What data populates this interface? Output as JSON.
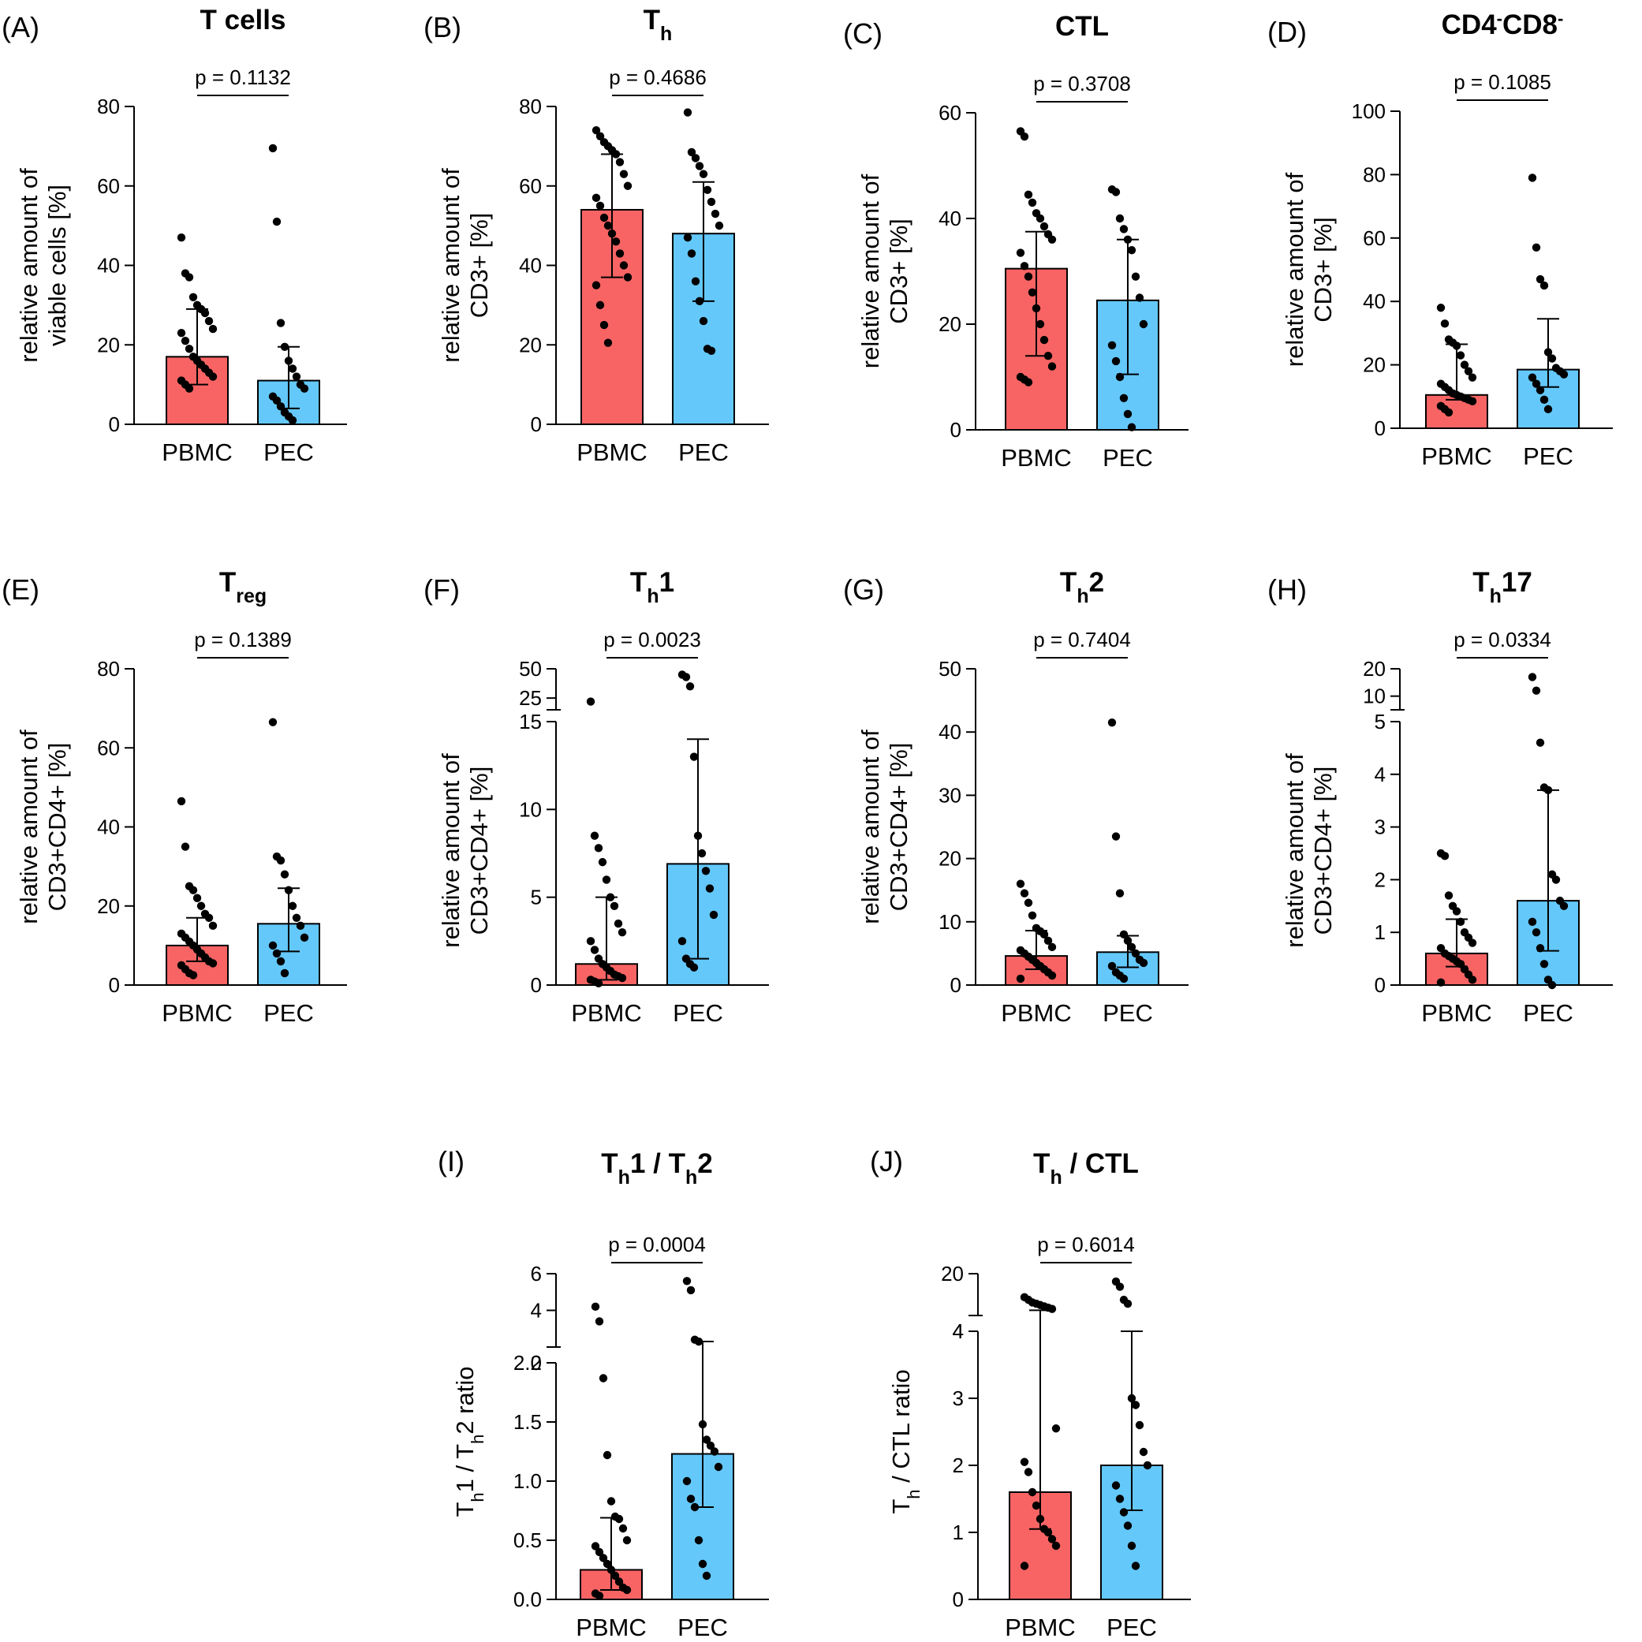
{
  "colors": {
    "pbmc": "#f86464",
    "pec": "#64c8fa",
    "axis": "#000000",
    "dot": "#000000"
  },
  "chart_data": [
    {
      "id": "A",
      "panel_label": "(A)",
      "type": "bar",
      "title": {
        "base": "T cells",
        "sub": "",
        "suffix": ""
      },
      "categories": [
        "PBMC",
        "PEC"
      ],
      "ylabel": [
        "relative amount of",
        "viable cells [%]"
      ],
      "ylim": [
        0,
        80
      ],
      "yticks": [
        0,
        20,
        40,
        60,
        80
      ],
      "p_text": "p = 0.1132",
      "series": [
        {
          "name": "PBMC",
          "mean": 17,
          "err_low": 10,
          "err_high": 29,
          "points": [
            47,
            38,
            37,
            32,
            30,
            29,
            28,
            26,
            24,
            23,
            21,
            19,
            17,
            16,
            15,
            14,
            13,
            12,
            11,
            10,
            9
          ]
        },
        {
          "name": "PEC",
          "mean": 11,
          "err_low": 4,
          "err_high": 19.5,
          "points": [
            69.5,
            51,
            25.5,
            19.5,
            16,
            14,
            12,
            10,
            9,
            7,
            6,
            4.5,
            3,
            2,
            1
          ]
        }
      ]
    },
    {
      "id": "B",
      "panel_label": "(B)",
      "type": "bar",
      "title": {
        "base": "T",
        "sub": "h",
        "suffix": ""
      },
      "categories": [
        "PBMC",
        "PEC"
      ],
      "ylabel": [
        "relative amount of",
        "CD3+ [%]"
      ],
      "ylim": [
        0,
        80
      ],
      "yticks": [
        0,
        20,
        40,
        60,
        80
      ],
      "p_text": "p = 0.4686",
      "series": [
        {
          "name": "PBMC",
          "mean": 54,
          "err_low": 37,
          "err_high": 68,
          "points": [
            74,
            72.5,
            71,
            70,
            69,
            68,
            66,
            63,
            60,
            57,
            55,
            52,
            50,
            48,
            46,
            43,
            40,
            37,
            35,
            30,
            25,
            20.5
          ]
        },
        {
          "name": "PEC",
          "mean": 48,
          "err_low": 31,
          "err_high": 61,
          "points": [
            78.5,
            68.5,
            67,
            65,
            63,
            59,
            56,
            53,
            50,
            47,
            43,
            36,
            31,
            26,
            19,
            18.5
          ]
        }
      ]
    },
    {
      "id": "C",
      "panel_label": "(C)",
      "type": "bar",
      "title": {
        "base": "CTL",
        "sub": "",
        "suffix": ""
      },
      "categories": [
        "PBMC",
        "PEC"
      ],
      "ylabel": [
        "relative amount of",
        "CD3+ [%]"
      ],
      "ylim": [
        0,
        60
      ],
      "yticks": [
        0,
        20,
        40,
        60
      ],
      "p_text": "p = 0.3708",
      "series": [
        {
          "name": "PBMC",
          "mean": 30.5,
          "err_low": 14,
          "err_high": 37.5,
          "points": [
            56.5,
            55.5,
            44.5,
            43,
            41,
            40,
            38.5,
            37,
            36,
            33.5,
            31,
            29,
            26,
            23,
            20,
            17,
            14,
            12,
            10,
            9.5,
            9
          ]
        },
        {
          "name": "PEC",
          "mean": 24.5,
          "err_low": 10.5,
          "err_high": 36,
          "points": [
            45.5,
            45,
            40,
            38,
            36,
            34,
            29,
            25,
            20,
            16,
            13,
            10,
            6,
            3,
            0.5
          ]
        }
      ]
    },
    {
      "id": "D",
      "panel_label": "(D)",
      "type": "bar",
      "title": {
        "base": "CD4",
        "sup1": "-",
        "mid": "CD8",
        "sup2": "-"
      },
      "categories": [
        "PBMC",
        "PEC"
      ],
      "ylabel": [
        "relative amount of",
        "CD3+ [%]"
      ],
      "ylim": [
        0,
        100
      ],
      "yticks": [
        0,
        20,
        40,
        60,
        80,
        100
      ],
      "p_text": "p = 0.1085",
      "series": [
        {
          "name": "PBMC",
          "mean": 10.5,
          "err_low": 9,
          "err_high": 26.5,
          "points": [
            38,
            33,
            28,
            27,
            26,
            23,
            20,
            18,
            16,
            14,
            13,
            12,
            11,
            10.5,
            10,
            9.5,
            9,
            8.5,
            7,
            6,
            5
          ]
        },
        {
          "name": "PEC",
          "mean": 18.5,
          "err_low": 13,
          "err_high": 34.5,
          "points": [
            79,
            57,
            47,
            45,
            24,
            22,
            19,
            18,
            17,
            16,
            14,
            12,
            9,
            6
          ]
        }
      ]
    },
    {
      "id": "E",
      "panel_label": "(E)",
      "type": "bar",
      "title": {
        "base": "T",
        "sub": "reg",
        "suffix": ""
      },
      "categories": [
        "PBMC",
        "PEC"
      ],
      "ylabel": [
        "relative amount of",
        "CD3+CD4+ [%]"
      ],
      "ylim": [
        0,
        80
      ],
      "yticks": [
        0,
        20,
        40,
        60,
        80
      ],
      "p_text": "p = 0.1389",
      "series": [
        {
          "name": "PBMC",
          "mean": 10,
          "err_low": 6,
          "err_high": 17,
          "points": [
            46.5,
            35,
            25,
            24,
            22,
            20,
            18,
            17,
            15,
            13,
            12,
            11,
            10,
            9,
            8,
            7,
            6,
            5.5,
            5,
            4,
            3,
            2.5
          ]
        },
        {
          "name": "PEC",
          "mean": 15.5,
          "err_low": 8.5,
          "err_high": 24.5,
          "points": [
            66.5,
            32.5,
            31.5,
            28,
            24,
            20,
            17,
            15,
            12,
            10,
            8,
            6,
            3
          ]
        }
      ]
    },
    {
      "id": "F",
      "panel_label": "(F)",
      "type": "bar",
      "broken_axis": true,
      "title": {
        "base": "T",
        "sub": "h",
        "suffix": "1"
      },
      "categories": [
        "PBMC",
        "PEC"
      ],
      "ylabel": [
        "relative amount of",
        "CD3+CD4+ [%]"
      ],
      "lower_range": [
        0,
        15
      ],
      "lower_ticks": [
        0,
        5,
        10,
        15
      ],
      "upper_range": [
        15,
        50
      ],
      "upper_ticks": [
        25,
        50
      ],
      "p_text": "p = 0.0023",
      "series": [
        {
          "name": "PBMC",
          "mean": 1.2,
          "err_low": 0.3,
          "err_high": 5,
          "points": [
            22,
            8.5,
            7.8,
            7,
            6,
            5,
            4.5,
            3.5,
            3,
            2.5,
            2,
            1.5,
            1.2,
            1,
            0.8,
            0.6,
            0.5,
            0.4,
            0.3,
            0.2,
            0.1
          ]
        },
        {
          "name": "PEC",
          "mean": 6.9,
          "err_low": 1.5,
          "err_high": 14,
          "points": [
            45,
            43,
            35,
            13,
            8.5,
            7.5,
            6.5,
            5.5,
            4,
            2.5,
            1.5,
            1.2,
            1
          ]
        }
      ]
    },
    {
      "id": "G",
      "panel_label": "(G)",
      "type": "bar",
      "title": {
        "base": "T",
        "sub": "h",
        "suffix": "2"
      },
      "categories": [
        "PBMC",
        "PEC"
      ],
      "ylabel": [
        "relative amount of",
        "CD3+CD4+ [%]"
      ],
      "ylim": [
        0,
        50
      ],
      "yticks": [
        0,
        10,
        20,
        30,
        40,
        50
      ],
      "p_text": "p = 0.7404",
      "series": [
        {
          "name": "PBMC",
          "mean": 4.6,
          "err_low": 2.5,
          "err_high": 8.6,
          "points": [
            16,
            14.5,
            13,
            11,
            9,
            8.5,
            8,
            7,
            6,
            5.5,
            5,
            4.5,
            4,
            3.5,
            3,
            2.5,
            2,
            1.5,
            1
          ]
        },
        {
          "name": "PEC",
          "mean": 5.2,
          "err_low": 2.8,
          "err_high": 7.8,
          "points": [
            41.5,
            23.5,
            14.5,
            8,
            7,
            6,
            5,
            4,
            3.5,
            3,
            2,
            1.5,
            1
          ]
        }
      ]
    },
    {
      "id": "H",
      "panel_label": "(H)",
      "type": "bar",
      "broken_axis": true,
      "title": {
        "base": "T",
        "sub": "h",
        "suffix": "17"
      },
      "categories": [
        "PBMC",
        "PEC"
      ],
      "ylabel": [
        "relative amount of",
        "CD3+CD4+ [%]"
      ],
      "lower_range": [
        0,
        5
      ],
      "lower_ticks": [
        0,
        1,
        2,
        3,
        4,
        5
      ],
      "upper_range": [
        5,
        20
      ],
      "upper_ticks": [
        10,
        20
      ],
      "p_text": "p = 0.0334",
      "series": [
        {
          "name": "PBMC",
          "mean": 0.6,
          "err_low": 0.35,
          "err_high": 1.25,
          "points": [
            2.5,
            2.45,
            1.7,
            1.5,
            1.4,
            1.2,
            1,
            0.9,
            0.8,
            0.7,
            0.6,
            0.55,
            0.5,
            0.45,
            0.4,
            0.3,
            0.2,
            0.1,
            0.05
          ]
        },
        {
          "name": "PEC",
          "mean": 1.6,
          "err_low": 0.65,
          "err_high": 3.7,
          "points": [
            17,
            12,
            4.6,
            3.75,
            3.7,
            2.1,
            2,
            1.6,
            1.5,
            1.2,
            1,
            0.7,
            0.4,
            0.1,
            0
          ]
        }
      ]
    },
    {
      "id": "I",
      "panel_label": "(I)",
      "type": "bar",
      "broken_axis": true,
      "title": {
        "base": "T",
        "sub": "h",
        "suffix": "1 / T",
        "sub2": "h",
        "suffix2": "2"
      },
      "categories": [
        "PBMC",
        "PEC"
      ],
      "ylabel": [
        "T",
        "h",
        "1 / T",
        "h",
        "2 ratio"
      ],
      "lower_range": [
        0,
        2.0
      ],
      "lower_ticks": [
        "0.0",
        "0.5",
        "1.0",
        "1.5",
        "2.0"
      ],
      "upper_range": [
        2,
        6
      ],
      "upper_ticks": [
        2,
        4,
        6
      ],
      "p_text": "p = 0.0004",
      "series": [
        {
          "name": "PBMC",
          "mean": 0.25,
          "err_low": 0.08,
          "err_high": 0.69,
          "points": [
            4.2,
            3.4,
            1.87,
            1.22,
            0.83,
            0.7,
            0.68,
            0.6,
            0.5,
            0.45,
            0.4,
            0.35,
            0.3,
            0.25,
            0.2,
            0.15,
            0.1,
            0.08,
            0.05,
            0.03
          ]
        },
        {
          "name": "PEC",
          "mean": 1.23,
          "err_low": 0.78,
          "err_high": 2.3,
          "points": [
            5.6,
            5.1,
            2.4,
            2.3,
            1.48,
            1.35,
            1.3,
            1.25,
            1.12,
            1.0,
            0.85,
            0.78,
            0.5,
            0.3,
            0.2
          ]
        }
      ]
    },
    {
      "id": "J",
      "panel_label": "(J)",
      "type": "bar",
      "broken_axis": true,
      "title": {
        "base": "T",
        "sub": "h",
        "suffix": " / CTL"
      },
      "categories": [
        "PBMC",
        "PEC"
      ],
      "ylabel": [
        "T",
        "h",
        " / CTL ratio"
      ],
      "lower_range": [
        0,
        4
      ],
      "lower_ticks": [
        0,
        1,
        2,
        3,
        4
      ],
      "upper_range": [
        4,
        20
      ],
      "upper_ticks": [
        4,
        20
      ],
      "p_text": "p = 0.6014",
      "series": [
        {
          "name": "PBMC",
          "mean": 1.6,
          "err_low": 1.05,
          "err_high": 6,
          "points": [
            11,
            10,
            9,
            8.5,
            8,
            7.5,
            7,
            6.5,
            2.55,
            2.05,
            1.9,
            1.6,
            1.4,
            1.2,
            1.05,
            1.0,
            0.9,
            0.8,
            0.5
          ]
        },
        {
          "name": "PEC",
          "mean": 2.0,
          "err_low": 1.33,
          "err_high": 4.0,
          "points": [
            17,
            15,
            10,
            8.5,
            3.0,
            2.9,
            2.6,
            2.2,
            2.0,
            1.7,
            1.5,
            1.3,
            1.1,
            0.8,
            0.5
          ]
        }
      ]
    }
  ]
}
